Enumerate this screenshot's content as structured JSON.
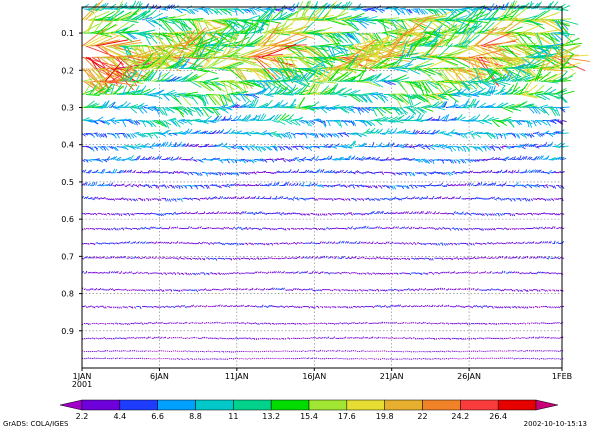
{
  "chart_data": {
    "type": "vector-timeseries",
    "y_tick_labels": [
      "0.1",
      "0.2",
      "0.3",
      "0.4",
      "0.5",
      "0.6",
      "0.7",
      "0.8",
      "0.9"
    ],
    "y_ticks": [
      0.1,
      0.2,
      0.3,
      0.4,
      0.5,
      0.6,
      0.7,
      0.8,
      0.9
    ],
    "ylim": [
      1.0,
      0.03
    ],
    "x_tick_labels": [
      "1JAN",
      "6JAN",
      "11JAN",
      "16JAN",
      "21JAN",
      "26JAN",
      "1FEB"
    ],
    "x_ticks": [
      0,
      5,
      10,
      15,
      20,
      25,
      31
    ],
    "x_year_label": "2001",
    "xlim": [
      0,
      31
    ],
    "grid": true,
    "colorbar": {
      "labels": [
        "2.2",
        "4.4",
        "6.6",
        "8.8",
        "11",
        "13.2",
        "15.4",
        "17.6",
        "19.8",
        "22",
        "24.2",
        "26.4"
      ],
      "colors": [
        "#a000c8",
        "#6e00dc",
        "#1e3cff",
        "#00a0ff",
        "#00c8c8",
        "#00d28c",
        "#00dc00",
        "#a0e632",
        "#e6dc32",
        "#e6af2d",
        "#f08228",
        "#fa3c3c",
        "#e60000",
        "#c80078"
      ]
    },
    "levels": [
      {
        "y": 0.035,
        "speed": 9,
        "amp": 1.2
      },
      {
        "y": 0.065,
        "speed": 14,
        "amp": 2.2
      },
      {
        "y": 0.1,
        "speed": 15,
        "amp": 2.0
      },
      {
        "y": 0.135,
        "speed": 16,
        "amp": 2.4
      },
      {
        "y": 0.165,
        "speed": 18,
        "amp": 2.6
      },
      {
        "y": 0.195,
        "speed": 15,
        "amp": 2.2
      },
      {
        "y": 0.23,
        "speed": 13,
        "amp": 1.8
      },
      {
        "y": 0.265,
        "speed": 12,
        "amp": 1.6
      },
      {
        "y": 0.3,
        "speed": 10,
        "amp": 1.4
      },
      {
        "y": 0.335,
        "speed": 9,
        "amp": 1.2
      },
      {
        "y": 0.37,
        "speed": 8,
        "amp": 1.0
      },
      {
        "y": 0.405,
        "speed": 7,
        "amp": 1.0
      },
      {
        "y": 0.44,
        "speed": 6,
        "amp": 0.9
      },
      {
        "y": 0.475,
        "speed": 5,
        "amp": 0.8
      },
      {
        "y": 0.51,
        "speed": 5,
        "amp": 0.8
      },
      {
        "y": 0.545,
        "speed": 4.5,
        "amp": 0.7
      },
      {
        "y": 0.585,
        "speed": 4,
        "amp": 0.7
      },
      {
        "y": 0.625,
        "speed": 4,
        "amp": 0.6
      },
      {
        "y": 0.665,
        "speed": 4,
        "amp": 0.6
      },
      {
        "y": 0.705,
        "speed": 3.5,
        "amp": 0.6
      },
      {
        "y": 0.745,
        "speed": 3.5,
        "amp": 0.6
      },
      {
        "y": 0.79,
        "speed": 3.5,
        "amp": 0.6
      },
      {
        "y": 0.835,
        "speed": 3.5,
        "amp": 0.6
      },
      {
        "y": 0.88,
        "speed": 3,
        "amp": 0.5
      },
      {
        "y": 0.92,
        "speed": 3,
        "amp": 0.5
      },
      {
        "y": 0.955,
        "speed": 2.5,
        "amp": 0.4
      },
      {
        "y": 0.975,
        "speed": 2.5,
        "amp": 0.4
      }
    ]
  },
  "footer": {
    "left": "GrADS: COLA/IGES",
    "right": "2002-10-10-15:13"
  }
}
